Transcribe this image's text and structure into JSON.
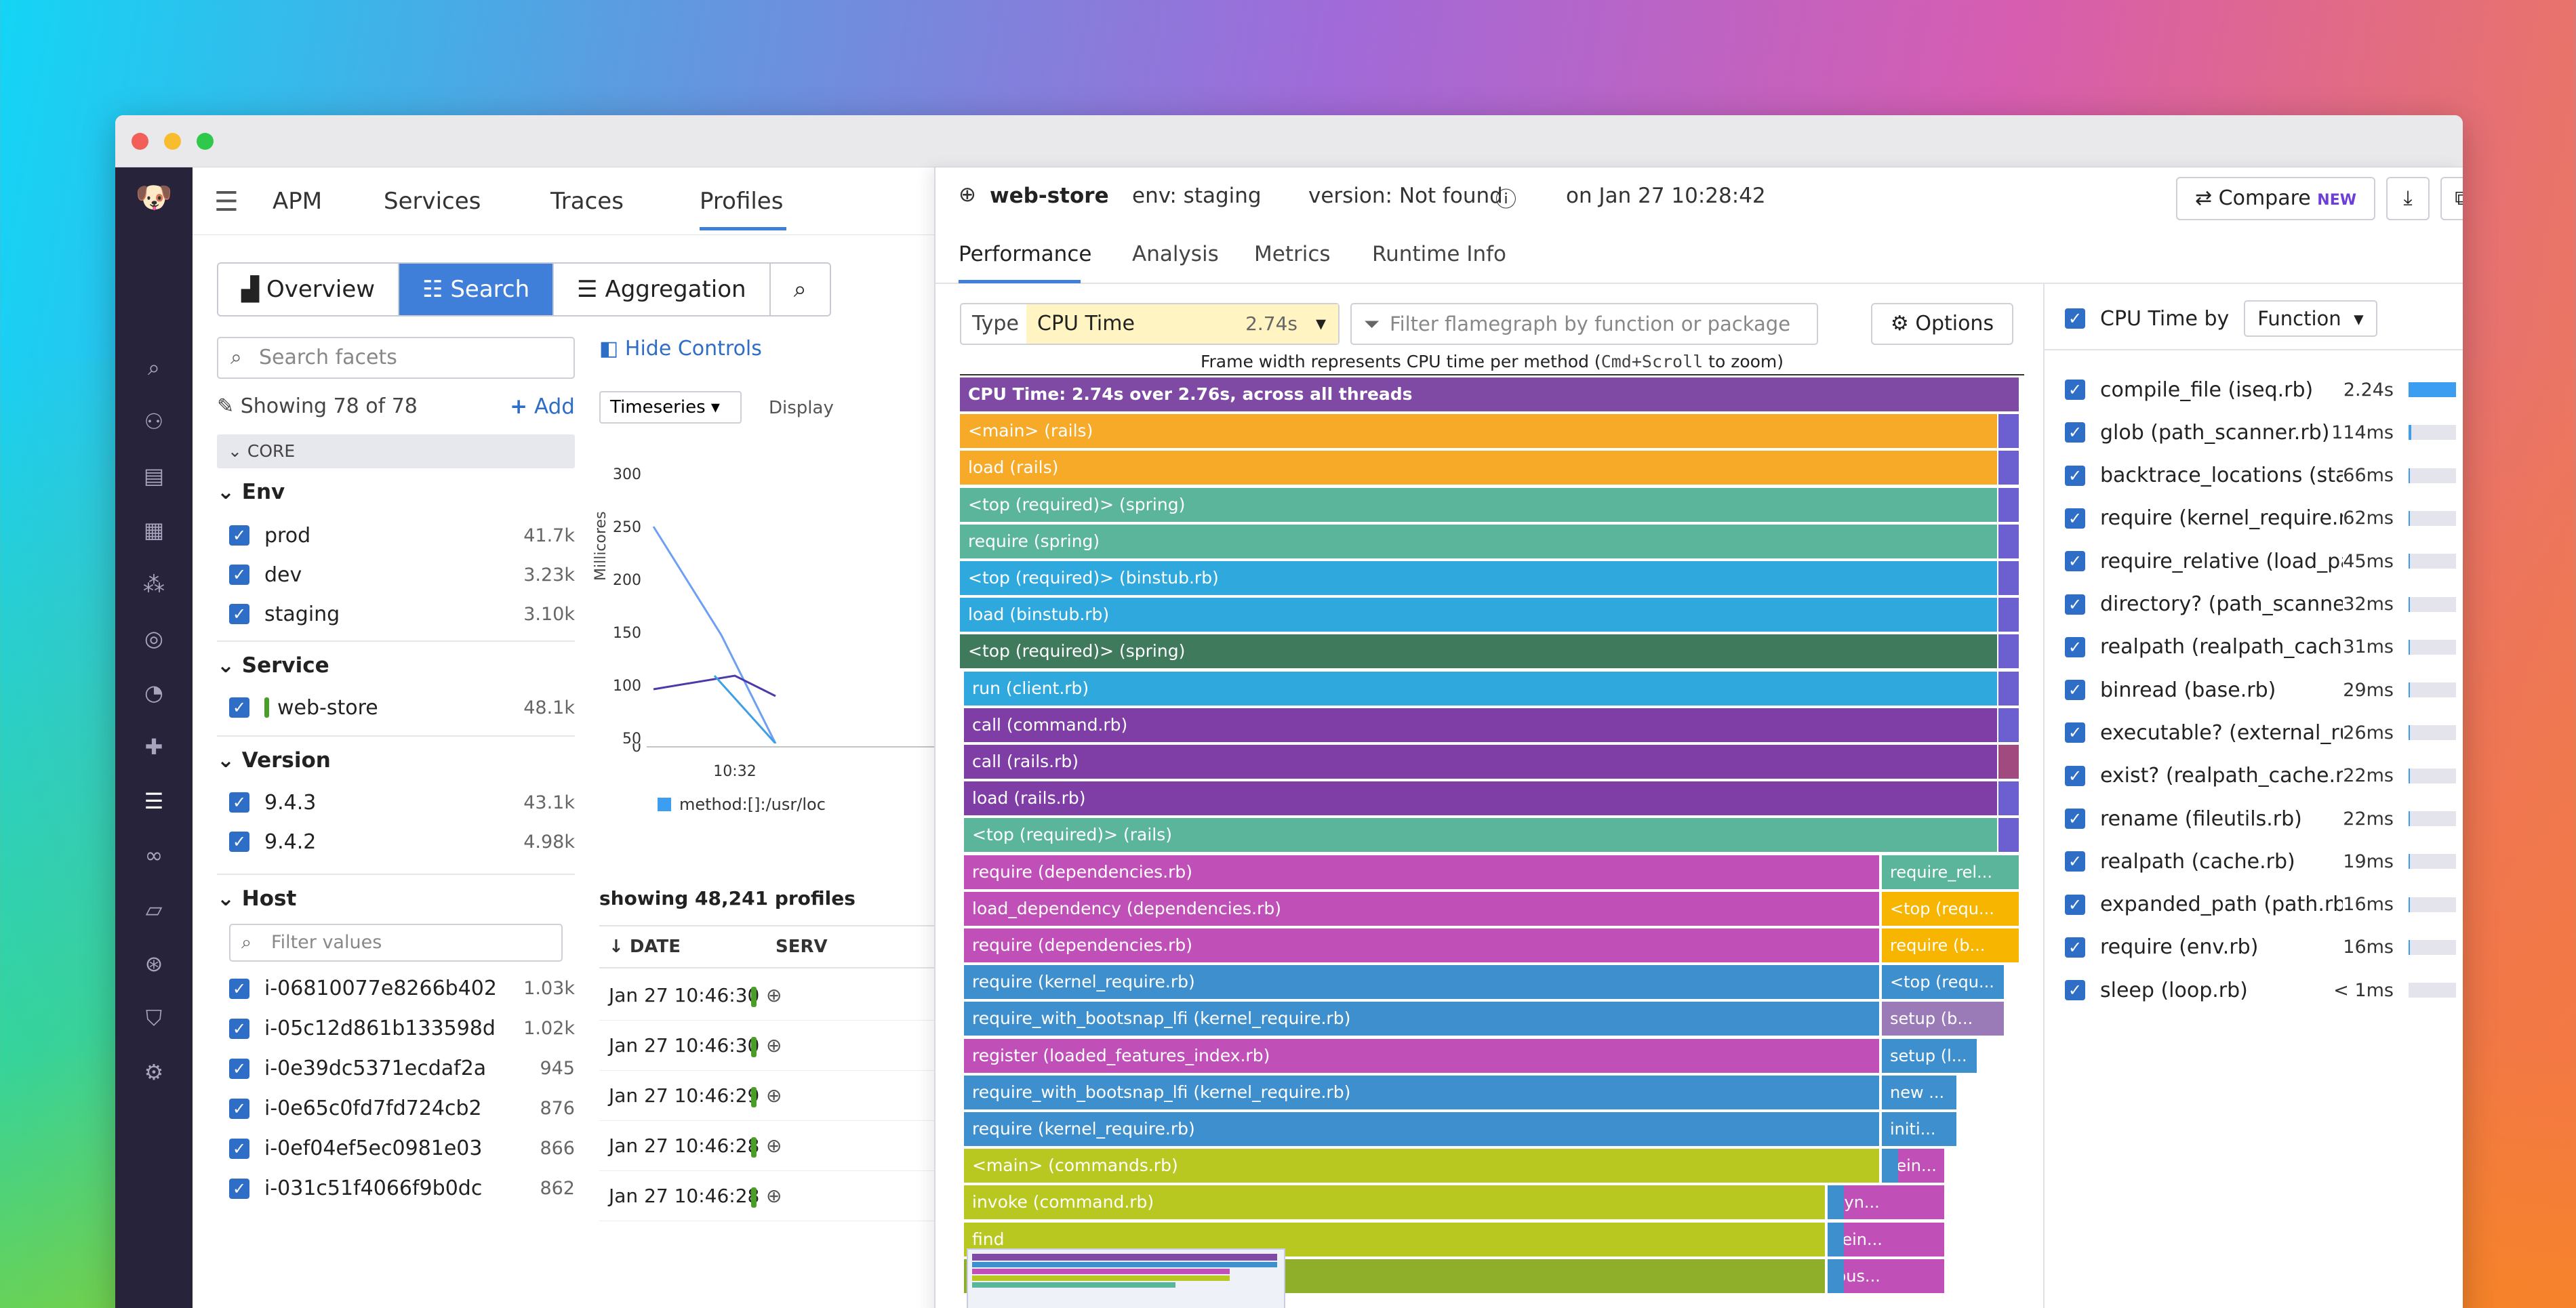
{
  "nav": {
    "apm": "APM",
    "services": "Services",
    "traces": "Traces",
    "profiles": "Profiles"
  },
  "left_tabs": {
    "overview": "Overview",
    "search": "Search",
    "aggregation": "Aggregation"
  },
  "facets": {
    "search_placeholder": "Search facets",
    "hide_controls": "Hide Controls",
    "showing": "Showing 78 of 78",
    "add": "Add",
    "core": "CORE",
    "env": {
      "title": "Env",
      "items": [
        {
          "label": "prod",
          "count": "41.7k"
        },
        {
          "label": "dev",
          "count": "3.23k"
        },
        {
          "label": "staging",
          "count": "3.10k"
        }
      ]
    },
    "service": {
      "title": "Service",
      "items": [
        {
          "label": "web-store",
          "count": "48.1k"
        }
      ]
    },
    "version": {
      "title": "Version",
      "items": [
        {
          "label": "9.4.3",
          "count": "43.1k"
        },
        {
          "label": "9.4.2",
          "count": "4.98k"
        }
      ]
    },
    "host": {
      "title": "Host",
      "filter_placeholder": "Filter values",
      "items": [
        {
          "label": "i-06810077e8266b402",
          "count": "1.03k"
        },
        {
          "label": "i-05c12d861b133598d",
          "count": "1.02k"
        },
        {
          "label": "i-0e39dc5371ecdaf2a",
          "count": "945"
        },
        {
          "label": "i-0e65c0fd7fd724cb2",
          "count": "876"
        },
        {
          "label": "i-0ef04ef5ec0981e03",
          "count": "866"
        },
        {
          "label": "i-031c51f4066f9b0dc",
          "count": "862"
        }
      ]
    }
  },
  "timeseries": {
    "select": "Timeseries",
    "display": "Display",
    "ylabel": "Millicores",
    "yticks": [
      "300",
      "250",
      "200",
      "150",
      "100",
      "50",
      "0"
    ],
    "xtick": "10:32",
    "legend": "method:[]:/usr/loc",
    "showing": "showing 48,241 profiles",
    "col_date": "DATE",
    "col_serv": "SERV",
    "rows": [
      "Jan 27 10:46:30",
      "Jan 27 10:46:30",
      "Jan 27 10:46:29",
      "Jan 27 10:46:28",
      "Jan 27 10:46:28"
    ]
  },
  "panel": {
    "service": "web-store",
    "env": "env: staging",
    "version": "version: Not found",
    "time": "on Jan 27 10:28:42",
    "compare": "Compare",
    "new": "NEW",
    "tabs": [
      "Performance",
      "Analysis",
      "Metrics",
      "Runtime Info"
    ],
    "type_label": "Type",
    "type_value": "CPU Time",
    "type_total": "2.74s",
    "filter_placeholder": "Filter flamegraph by function or package",
    "options": "Options",
    "caption_pre": "Frame width represents CPU time per method (",
    "caption_kbd": "Cmd+Scroll",
    "caption_post": " to zoom)"
  },
  "flame": [
    {
      "label": "CPU Time: 2.74s over 2.76s, across all threads",
      "color": "#7e4aa3"
    },
    {
      "label": "<main> (rails)",
      "color": "#f7a928"
    },
    {
      "label": "load (rails)",
      "color": "#f7a928"
    },
    {
      "label": "<top (required)> (spring)",
      "color": "#5ab59a"
    },
    {
      "label": "require (spring)",
      "color": "#5ab59a"
    },
    {
      "label": "<top (required)> (binstub.rb)",
      "color": "#2fa8de"
    },
    {
      "label": "load (binstub.rb)",
      "color": "#2fa8de"
    },
    {
      "label": "<top (required)> (spring)",
      "color": "#3f7a5c"
    },
    {
      "label": "run (client.rb)",
      "color": "#2fa8de"
    },
    {
      "label": "call (command.rb)",
      "color": "#7e3ea5"
    },
    {
      "label": "call (rails.rb)",
      "color": "#7e3ea5"
    },
    {
      "label": "load (rails.rb)",
      "color": "#7e3ea5"
    },
    {
      "label": "<top (required)> (rails)",
      "color": "#5ab59a"
    },
    {
      "label": "require (dependencies.rb)",
      "color": "#c050b8",
      "side": "require_rel...",
      "sidecolor": "#5ab59a"
    },
    {
      "label": "load_dependency (dependencies.rb)",
      "color": "#c050b8",
      "side": "<top (requ...",
      "sidecolor": "#f7b500"
    },
    {
      "label": "require (dependencies.rb)",
      "color": "#c050b8",
      "side": "require (b...",
      "sidecolor": "#f7b500"
    },
    {
      "label": "require (kernel_require.rb)",
      "color": "#3e8fce",
      "side": "<top (requ...",
      "sidecolor": "#3e8fce"
    },
    {
      "label": "require_with_bootsnap_lfi (kernel_require.rb)",
      "color": "#3e8fce",
      "side": "setup (b...",
      "sidecolor": "#9b7ab8"
    },
    {
      "label": "register (loaded_features_index.rb)",
      "color": "#c050b8",
      "side": "setup (l...",
      "sidecolor": "#3e8fce"
    },
    {
      "label": "require_with_bootsnap_lfi (kernel_require.rb)",
      "color": "#3e8fce",
      "side": "new ...",
      "sidecolor": "#3e8fce"
    },
    {
      "label": "require (kernel_require.rb)",
      "color": "#3e8fce",
      "side": "initi...",
      "sidecolor": "#3e8fce"
    },
    {
      "label": "<main> (commands.rb)",
      "color": "#b8c820",
      "side": "rein...",
      "sidecolor": "#c050b8"
    },
    {
      "label": "invoke (command.rb)",
      "color": "#b8c820",
      "side": "syn...",
      "sidecolor": "#c050b8"
    },
    {
      "label": "find",
      "color": "#b8c820",
      "side": "rein...",
      "sidecolor": "#c050b8"
    },
    {
      "label": "",
      "color": "#8fae2a",
      "side": "pus...",
      "sidecolor": "#c050b8"
    }
  ],
  "cpu_by": {
    "label": "CPU Time by",
    "select": "Function",
    "rows": [
      {
        "name": "compile_file (iseq.rb)",
        "time": "2.24s",
        "frac": 1.0
      },
      {
        "name": "glob (path_scanner.rb)",
        "time": "114ms",
        "frac": 0.05
      },
      {
        "name": "backtrace_locations (stack.rb)",
        "time": "66ms",
        "frac": 0.03
      },
      {
        "name": "require (kernel_require.rb)",
        "time": "62ms",
        "frac": 0.03
      },
      {
        "name": "require_relative (load_path_cache...",
        "time": "45ms",
        "frac": 0.02
      },
      {
        "name": "directory? (path_scanner.rb)",
        "time": "32ms",
        "frac": 0.015
      },
      {
        "name": "realpath (realpath_cache.rb)",
        "time": "31ms",
        "frac": 0.014
      },
      {
        "name": "binread (base.rb)",
        "time": "29ms",
        "frac": 0.013
      },
      {
        "name": "executable? (external_runtime.rb)",
        "time": "26ms",
        "frac": 0.012
      },
      {
        "name": "exist? (realpath_cache.rb)",
        "time": "22ms",
        "frac": 0.01
      },
      {
        "name": "rename (fileutils.rb)",
        "time": "22ms",
        "frac": 0.01
      },
      {
        "name": "realpath (cache.rb)",
        "time": "19ms",
        "frac": 0.008
      },
      {
        "name": "expanded_path (path.rb)",
        "time": "16ms",
        "frac": 0.007
      },
      {
        "name": "require (env.rb)",
        "time": "16ms",
        "frac": 0.007
      },
      {
        "name": "sleep (loop.rb)",
        "time": "< 1ms",
        "frac": 0.0
      }
    ]
  },
  "colors": {
    "accent": "#3f7fd9",
    "sidebar": "#26233a",
    "new_badge": "#6d3fd6"
  }
}
